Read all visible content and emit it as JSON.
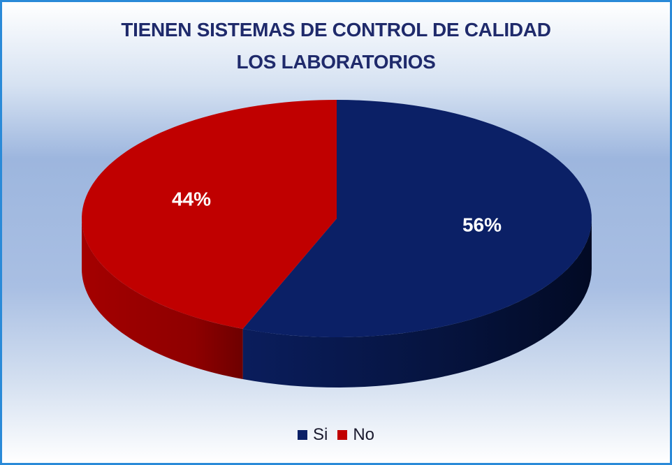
{
  "chart_data": {
    "type": "pie",
    "title": [
      "TIENEN SISTEMAS DE CONTROL DE CALIDAD",
      "LOS LABORATORIOS"
    ],
    "categories": [
      "Si",
      "No"
    ],
    "values": [
      56,
      44
    ],
    "labels": [
      "56%",
      "44%"
    ],
    "colors": [
      "#0b2066",
      "#c00000"
    ],
    "style": "3d",
    "legend_position": "bottom"
  }
}
